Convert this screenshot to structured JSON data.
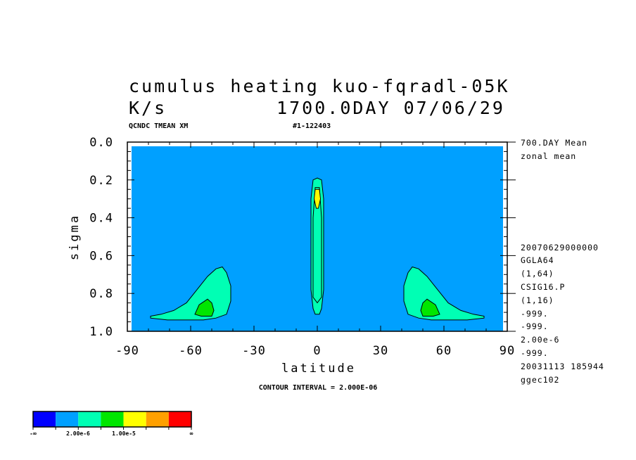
{
  "chart_data": {
    "type": "contour",
    "title_line1": "cumulus heating kuo-fqradl-05K",
    "title_units": "K/s",
    "title_time": "1700.0DAY 07/06/29",
    "subtitle_left": "QCNDC TMEAN XM",
    "subtitle_right": "#1-122403",
    "xlabel": "latitude",
    "ylabel": "sigma",
    "xlim": [
      -90,
      90
    ],
    "ylim": [
      1.0,
      0.0
    ],
    "x_ticks": [
      "-90",
      "-60",
      "-30",
      "0",
      "30",
      "60",
      "90"
    ],
    "y_ticks": [
      "0.0",
      "0.2",
      "0.4",
      "0.6",
      "0.8",
      "1.0"
    ],
    "contour_interval_text": "CONTOUR INTERVAL = 2.000E-06",
    "contour_interval": 2e-06,
    "side_info": [
      "700.DAY Mean",
      "zonal mean",
      "20070629000000",
      "GGLA64",
      "(1,64)",
      "CSIG16.P",
      "(1,16)",
      "-999.",
      "-999.",
      "2.00e-6",
      "-999.",
      "20031113 185944",
      "ggec102"
    ],
    "colorbar": {
      "colors": [
        "#0000ff",
        "#00a0ff",
        "#00ffb4",
        "#00e600",
        "#ffff00",
        "#ffa000",
        "#ff0000"
      ],
      "labels": [
        "-∞",
        "2.00e-6",
        "1.00e-5",
        "∞"
      ]
    },
    "regions": [
      {
        "name": "southern subtropical low-level heating",
        "level": 1,
        "points": [
          [
            -79,
            0.92
          ],
          [
            -74,
            0.91
          ],
          [
            -68,
            0.89
          ],
          [
            -62,
            0.85
          ],
          [
            -57,
            0.78
          ],
          [
            -52,
            0.71
          ],
          [
            -48,
            0.67
          ],
          [
            -45,
            0.66
          ],
          [
            -43,
            0.69
          ],
          [
            -41,
            0.76
          ],
          [
            -41,
            0.84
          ],
          [
            -43,
            0.91
          ],
          [
            -48,
            0.93
          ],
          [
            -54,
            0.94
          ],
          [
            -62,
            0.94
          ],
          [
            -71,
            0.94
          ],
          [
            -79,
            0.93
          ]
        ]
      },
      {
        "name": "southern subtropical inner contour",
        "level": 2,
        "points": [
          [
            -58,
            0.91
          ],
          [
            -56,
            0.86
          ],
          [
            -52,
            0.83
          ],
          [
            -50,
            0.85
          ],
          [
            -49,
            0.89
          ],
          [
            -50,
            0.92
          ],
          [
            -55,
            0.92
          ]
        ]
      },
      {
        "name": "equatorial deep convection",
        "level": 1,
        "points": [
          [
            -2,
            0.2
          ],
          [
            0,
            0.19
          ],
          [
            2,
            0.2
          ],
          [
            3,
            0.3
          ],
          [
            3,
            0.55
          ],
          [
            3,
            0.78
          ],
          [
            2,
            0.88
          ],
          [
            1,
            0.91
          ],
          [
            -1,
            0.91
          ],
          [
            -2,
            0.88
          ],
          [
            -3,
            0.78
          ],
          [
            -3,
            0.55
          ],
          [
            -3,
            0.3
          ]
        ]
      },
      {
        "name": "equatorial inner contour",
        "level": 1,
        "points": [
          [
            -1,
            0.24
          ],
          [
            1,
            0.24
          ],
          [
            2,
            0.4
          ],
          [
            2,
            0.62
          ],
          [
            2,
            0.82
          ],
          [
            0,
            0.85
          ],
          [
            -2,
            0.82
          ],
          [
            -2,
            0.62
          ],
          [
            -2,
            0.4
          ]
        ]
      },
      {
        "name": "equatorial maximum",
        "level": 3,
        "points": [
          [
            -1,
            0.25
          ],
          [
            1,
            0.25
          ],
          [
            1.5,
            0.3
          ],
          [
            0.5,
            0.35
          ],
          [
            -0.5,
            0.35
          ],
          [
            -1.5,
            0.3
          ]
        ]
      },
      {
        "name": "northern subtropical low-level heating",
        "level": 1,
        "points": [
          [
            79,
            0.92
          ],
          [
            74,
            0.91
          ],
          [
            68,
            0.89
          ],
          [
            62,
            0.85
          ],
          [
            57,
            0.78
          ],
          [
            52,
            0.71
          ],
          [
            48,
            0.67
          ],
          [
            45,
            0.66
          ],
          [
            43,
            0.69
          ],
          [
            41,
            0.76
          ],
          [
            41,
            0.84
          ],
          [
            43,
            0.91
          ],
          [
            48,
            0.93
          ],
          [
            54,
            0.94
          ],
          [
            62,
            0.94
          ],
          [
            71,
            0.94
          ],
          [
            79,
            0.93
          ]
        ]
      },
      {
        "name": "northern subtropical inner contour",
        "level": 2,
        "points": [
          [
            58,
            0.91
          ],
          [
            56,
            0.86
          ],
          [
            52,
            0.83
          ],
          [
            50,
            0.85
          ],
          [
            49,
            0.89
          ],
          [
            50,
            0.92
          ],
          [
            55,
            0.92
          ]
        ]
      }
    ]
  }
}
